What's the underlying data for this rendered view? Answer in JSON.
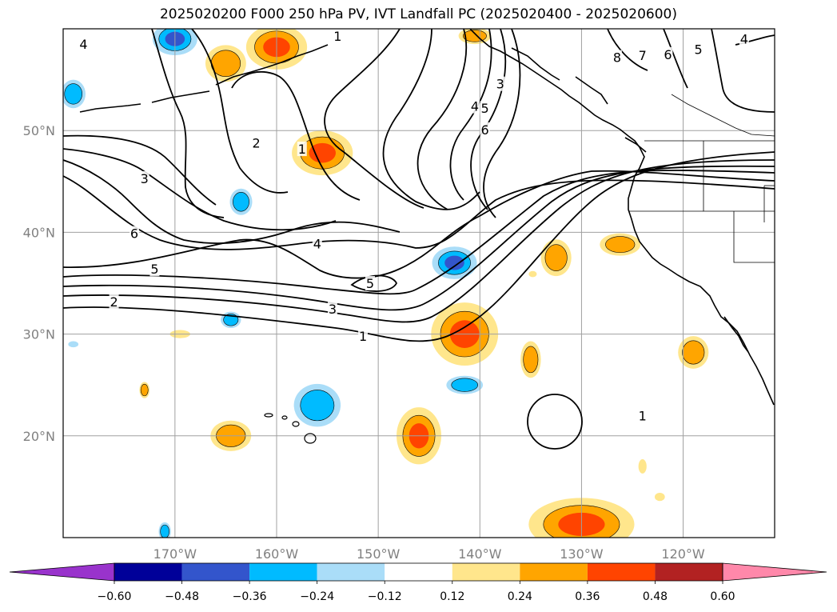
{
  "title": "2025020200 F000 250 hPa PV, IVT Landfall PC (2025020400 - 2025020600)",
  "axes": {
    "lon_range": [
      -181,
      -111
    ],
    "lat_range": [
      10,
      60
    ],
    "lon_ticks": [
      {
        "value": -170,
        "label": "170°W"
      },
      {
        "value": -160,
        "label": "160°W"
      },
      {
        "value": -150,
        "label": "150°W"
      },
      {
        "value": -140,
        "label": "140°W"
      },
      {
        "value": -130,
        "label": "130°W"
      },
      {
        "value": -120,
        "label": "120°W"
      }
    ],
    "lat_ticks": [
      {
        "value": 20,
        "label": "20°N"
      },
      {
        "value": 30,
        "label": "30°N"
      },
      {
        "value": 40,
        "label": "40°N"
      },
      {
        "value": 50,
        "label": "50°N"
      }
    ],
    "grid": true
  },
  "colorbar": {
    "levels": [
      -0.6,
      -0.48,
      -0.36,
      -0.24,
      -0.12,
      0.12,
      0.24,
      0.36,
      0.48,
      0.6
    ],
    "labels": [
      "−0.60",
      "−0.48",
      "−0.36",
      "−0.24",
      "−0.12",
      "0.12",
      "0.24",
      "0.36",
      "0.48",
      "0.60"
    ],
    "colors": [
      "#9933cc",
      "#000099",
      "#3355cc",
      "#00bbff",
      "#aaddf8",
      "#ffffff",
      "#ffe68c",
      "#ffa500",
      "#ff4400",
      "#b22222",
      "#ff88aa"
    ],
    "extend": "both"
  },
  "pv_contour_labels": [
    {
      "text": "4",
      "lon": -179,
      "lat": 58.5
    },
    {
      "text": "1",
      "lon": -154,
      "lat": 59.3
    },
    {
      "text": "3",
      "lon": -138,
      "lat": 54.6
    },
    {
      "text": "4",
      "lon": -140.5,
      "lat": 52.4
    },
    {
      "text": "5",
      "lon": -139.5,
      "lat": 52.2
    },
    {
      "text": "6",
      "lon": -139.5,
      "lat": 50.1
    },
    {
      "text": "8",
      "lon": -126.5,
      "lat": 57.2
    },
    {
      "text": "7",
      "lon": -124,
      "lat": 57.4
    },
    {
      "text": "6",
      "lon": -121.5,
      "lat": 57.5
    },
    {
      "text": "5",
      "lon": -118.5,
      "lat": 58.0
    },
    {
      "text": "4",
      "lon": -114,
      "lat": 59.0
    },
    {
      "text": "1",
      "lon": -157.5,
      "lat": 48.2
    },
    {
      "text": "2",
      "lon": -162,
      "lat": 48.8
    },
    {
      "text": "3",
      "lon": -173,
      "lat": 45.3
    },
    {
      "text": "6",
      "lon": -174,
      "lat": 39.9
    },
    {
      "text": "5",
      "lon": -172,
      "lat": 36.4
    },
    {
      "text": "4",
      "lon": -156,
      "lat": 38.9
    },
    {
      "text": "5",
      "lon": -150.8,
      "lat": 35.0
    },
    {
      "text": "3",
      "lon": -154.5,
      "lat": 32.5
    },
    {
      "text": "2",
      "lon": -176,
      "lat": 33.2
    },
    {
      "text": "1",
      "lon": -151.5,
      "lat": 29.8
    },
    {
      "text": "1",
      "lon": -124,
      "lat": 22.0
    }
  ],
  "pc_anomalies": [
    {
      "lon": -170,
      "lat": 59.0,
      "rx": 2.2,
      "ry": 1.6,
      "value": -0.45
    },
    {
      "lon": -160,
      "lat": 58.2,
      "rx": 3.0,
      "ry": 2.2,
      "value": 0.38
    },
    {
      "lon": -165,
      "lat": 56.6,
      "rx": 2.0,
      "ry": 1.8,
      "value": 0.28
    },
    {
      "lon": -180,
      "lat": 53.6,
      "rx": 1.2,
      "ry": 1.4,
      "value": -0.26
    },
    {
      "lon": -140.5,
      "lat": 59.3,
      "rx": 1.6,
      "ry": 0.8,
      "value": 0.26
    },
    {
      "lon": -155.5,
      "lat": 47.8,
      "rx": 3.0,
      "ry": 2.2,
      "value": 0.38
    },
    {
      "lon": -163.5,
      "lat": 43.0,
      "rx": 1.1,
      "ry": 1.3,
      "value": -0.26
    },
    {
      "lon": -142.5,
      "lat": 37.0,
      "rx": 2.2,
      "ry": 1.6,
      "value": -0.4
    },
    {
      "lon": -141.5,
      "lat": 30.0,
      "rx": 3.3,
      "ry": 3.1,
      "value": 0.4
    },
    {
      "lon": -132.5,
      "lat": 37.5,
      "rx": 1.5,
      "ry": 1.8,
      "value": 0.3
    },
    {
      "lon": -134.8,
      "lat": 35.9,
      "rx": 0.4,
      "ry": 0.3,
      "value": 0.2
    },
    {
      "lon": -126.2,
      "lat": 38.8,
      "rx": 2.0,
      "ry": 1.1,
      "value": 0.34
    },
    {
      "lon": -164.5,
      "lat": 20.0,
      "rx": 2.0,
      "ry": 1.5,
      "value": 0.28
    },
    {
      "lon": -169.5,
      "lat": 30.0,
      "rx": 1.0,
      "ry": 0.4,
      "value": 0.2
    },
    {
      "lon": -173,
      "lat": 24.5,
      "rx": 0.5,
      "ry": 0.8,
      "value": 0.27
    },
    {
      "lon": -164.5,
      "lat": 31.4,
      "rx": 1.0,
      "ry": 0.8,
      "value": -0.28
    },
    {
      "lon": -180,
      "lat": 29.0,
      "rx": 0.5,
      "ry": 0.3,
      "value": -0.15
    },
    {
      "lon": -156,
      "lat": 23.0,
      "rx": 2.3,
      "ry": 2.1,
      "value": -0.28
    },
    {
      "lon": -141.5,
      "lat": 25.0,
      "rx": 1.8,
      "ry": 0.9,
      "value": -0.26
    },
    {
      "lon": -146,
      "lat": 20.0,
      "rx": 2.2,
      "ry": 2.8,
      "value": 0.42
    },
    {
      "lon": -135,
      "lat": 27.5,
      "rx": 1.0,
      "ry": 1.8,
      "value": 0.28
    },
    {
      "lon": -119,
      "lat": 28.2,
      "rx": 1.5,
      "ry": 1.6,
      "value": 0.3
    },
    {
      "lon": -124,
      "lat": 17.0,
      "rx": 0.4,
      "ry": 0.7,
      "value": 0.24
    },
    {
      "lon": -122.3,
      "lat": 14.0,
      "rx": 0.5,
      "ry": 0.4,
      "value": 0.18
    },
    {
      "lon": -130,
      "lat": 11.3,
      "rx": 5.2,
      "ry": 2.6,
      "value": 0.38
    },
    {
      "lon": -171,
      "lat": 10.6,
      "rx": 0.6,
      "ry": 0.9,
      "value": -0.26
    }
  ]
}
